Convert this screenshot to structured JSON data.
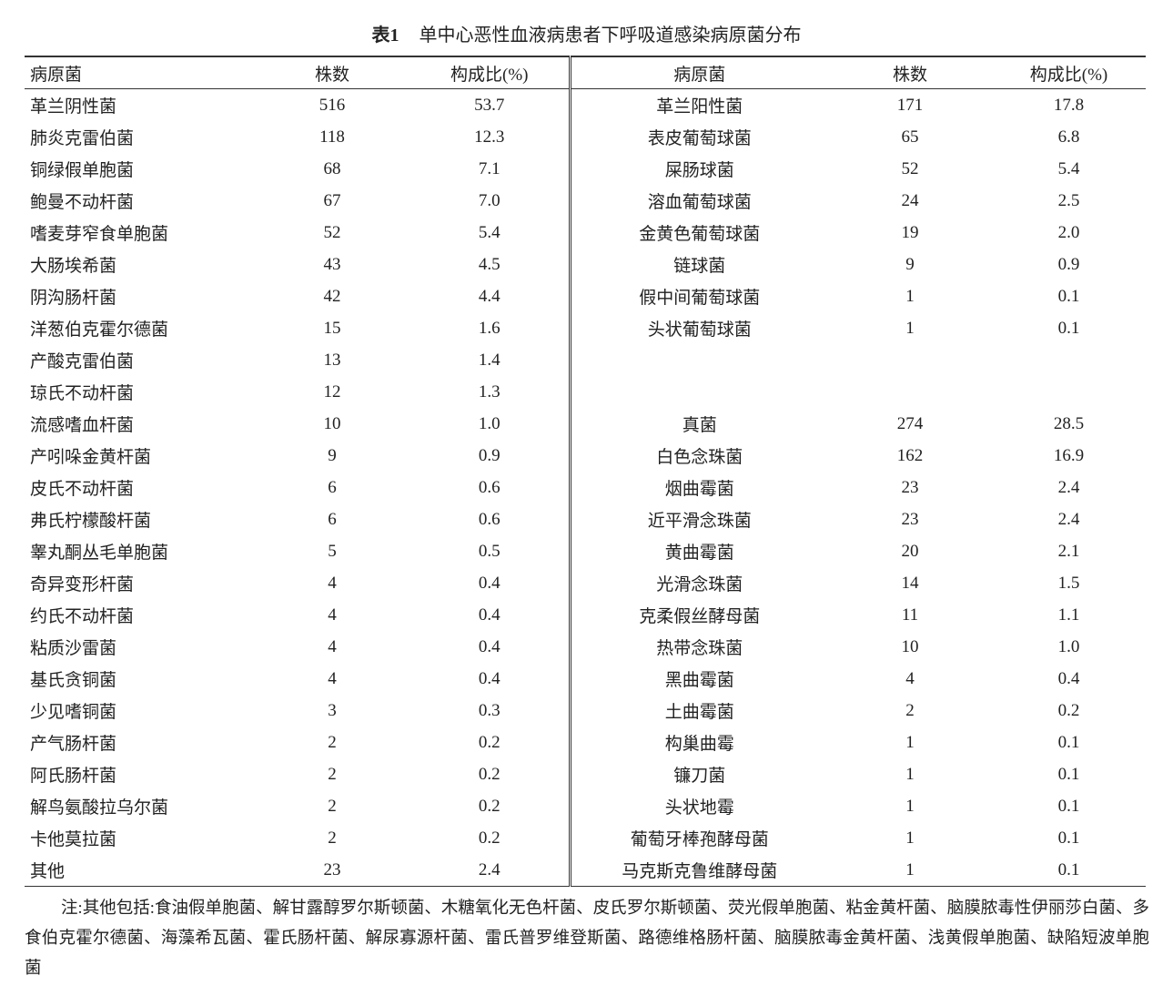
{
  "title": {
    "label": "表1",
    "text": "单中心恶性血液病患者下呼吸道感染病原菌分布"
  },
  "headers": {
    "left": [
      "病原菌",
      "株数",
      "构成比(%)"
    ],
    "right": [
      "病原菌",
      "株数",
      "构成比(%)"
    ]
  },
  "rows": [
    {
      "l": [
        "革兰阴性菌",
        "516",
        "53.7"
      ],
      "r": [
        "革兰阳性菌",
        "171",
        "17.8"
      ]
    },
    {
      "l": [
        "肺炎克雷伯菌",
        "118",
        "12.3"
      ],
      "r": [
        "表皮葡萄球菌",
        "65",
        "6.8"
      ]
    },
    {
      "l": [
        "铜绿假单胞菌",
        "68",
        "7.1"
      ],
      "r": [
        "屎肠球菌",
        "52",
        "5.4"
      ]
    },
    {
      "l": [
        "鲍曼不动杆菌",
        "67",
        "7.0"
      ],
      "r": [
        "溶血葡萄球菌",
        "24",
        "2.5"
      ]
    },
    {
      "l": [
        "嗜麦芽窄食单胞菌",
        "52",
        "5.4"
      ],
      "r": [
        "金黄色葡萄球菌",
        "19",
        "2.0"
      ]
    },
    {
      "l": [
        "大肠埃希菌",
        "43",
        "4.5"
      ],
      "r": [
        "链球菌",
        "9",
        "0.9"
      ]
    },
    {
      "l": [
        "阴沟肠杆菌",
        "42",
        "4.4"
      ],
      "r": [
        "假中间葡萄球菌",
        "1",
        "0.1"
      ]
    },
    {
      "l": [
        "洋葱伯克霍尔德菌",
        "15",
        "1.6"
      ],
      "r": [
        "头状葡萄球菌",
        "1",
        "0.1"
      ]
    },
    {
      "l": [
        "产酸克雷伯菌",
        "13",
        "1.4"
      ],
      "r": [
        "",
        "",
        ""
      ]
    },
    {
      "l": [
        "琼氏不动杆菌",
        "12",
        "1.3"
      ],
      "r": [
        "",
        "",
        ""
      ]
    },
    {
      "l": [
        "流感嗜血杆菌",
        "10",
        "1.0"
      ],
      "r": [
        "真菌",
        "274",
        "28.5"
      ]
    },
    {
      "l": [
        "产吲哚金黄杆菌",
        "9",
        "0.9"
      ],
      "r": [
        "白色念珠菌",
        "162",
        "16.9"
      ]
    },
    {
      "l": [
        "皮氏不动杆菌",
        "6",
        "0.6"
      ],
      "r": [
        "烟曲霉菌",
        "23",
        "2.4"
      ]
    },
    {
      "l": [
        "弗氏柠檬酸杆菌",
        "6",
        "0.6"
      ],
      "r": [
        "近平滑念珠菌",
        "23",
        "2.4"
      ]
    },
    {
      "l": [
        "睾丸酮丛毛单胞菌",
        "5",
        "0.5"
      ],
      "r": [
        "黄曲霉菌",
        "20",
        "2.1"
      ]
    },
    {
      "l": [
        "奇异变形杆菌",
        "4",
        "0.4"
      ],
      "r": [
        "光滑念珠菌",
        "14",
        "1.5"
      ]
    },
    {
      "l": [
        "约氏不动杆菌",
        "4",
        "0.4"
      ],
      "r": [
        "克柔假丝酵母菌",
        "11",
        "1.1"
      ]
    },
    {
      "l": [
        "粘质沙雷菌",
        "4",
        "0.4"
      ],
      "r": [
        "热带念珠菌",
        "10",
        "1.0"
      ]
    },
    {
      "l": [
        "基氏贪铜菌",
        "4",
        "0.4"
      ],
      "r": [
        "黑曲霉菌",
        "4",
        "0.4"
      ]
    },
    {
      "l": [
        "少见嗜铜菌",
        "3",
        "0.3"
      ],
      "r": [
        "土曲霉菌",
        "2",
        "0.2"
      ]
    },
    {
      "l": [
        "产气肠杆菌",
        "2",
        "0.2"
      ],
      "r": [
        "构巢曲霉",
        "1",
        "0.1"
      ]
    },
    {
      "l": [
        "阿氏肠杆菌",
        "2",
        "0.2"
      ],
      "r": [
        "镰刀菌",
        "1",
        "0.1"
      ]
    },
    {
      "l": [
        "解鸟氨酸拉乌尔菌",
        "2",
        "0.2"
      ],
      "r": [
        "头状地霉",
        "1",
        "0.1"
      ]
    },
    {
      "l": [
        "卡他莫拉菌",
        "2",
        "0.2"
      ],
      "r": [
        "葡萄牙棒孢酵母菌",
        "1",
        "0.1"
      ]
    },
    {
      "l": [
        "其他",
        "23",
        "2.4"
      ],
      "r": [
        "马克斯克鲁维酵母菌",
        "1",
        "0.1"
      ]
    }
  ],
  "note": "注:其他包括:食油假单胞菌、解甘露醇罗尔斯顿菌、木糖氧化无色杆菌、皮氏罗尔斯顿菌、荧光假单胞菌、粘金黄杆菌、脑膜脓毒性伊丽莎白菌、多食伯克霍尔德菌、海藻希瓦菌、霍氏肠杆菌、解尿寡源杆菌、雷氏普罗维登斯菌、路德维格肠杆菌、脑膜脓毒金黄杆菌、浅黄假单胞菌、缺陷短波单胞菌"
}
